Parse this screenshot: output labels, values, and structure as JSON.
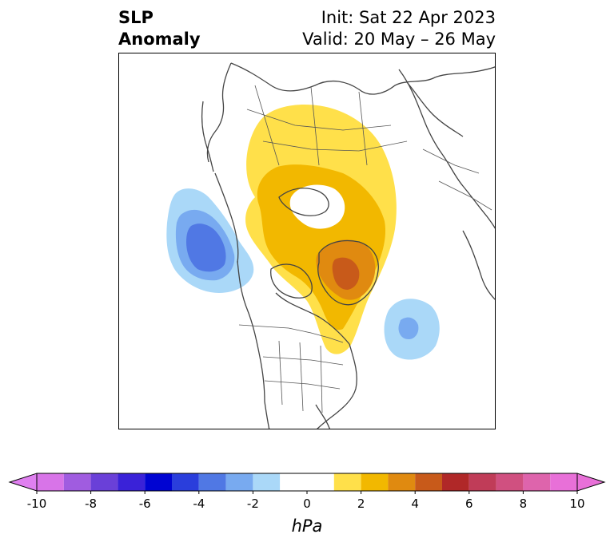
{
  "header": {
    "title_line1": "SLP",
    "title_line2": "Anomaly",
    "init_text": "Init: Sat 22 Apr 2023",
    "valid_text": "Valid: 20 May – 26 May"
  },
  "colorbar": {
    "unit": "hPa",
    "bounds": [
      -10,
      -9,
      -8,
      -7,
      -6,
      -5,
      -4,
      -3,
      -2,
      -1,
      1,
      2,
      3,
      4,
      5,
      6,
      7,
      8,
      9,
      10
    ],
    "colors": [
      "#d874e8",
      "#a05ce0",
      "#6a40d8",
      "#3a22d8",
      "#0004d2",
      "#2a3edc",
      "#5078e4",
      "#78aaf0",
      "#aad8f8",
      "#ffffff",
      "#ffe04a",
      "#f2b800",
      "#e08a10",
      "#c85a1a",
      "#b02828",
      "#c03c58",
      "#d05080",
      "#de64ac",
      "#e870d8"
    ],
    "under_color": "#e080f0",
    "over_color": "#e870d8",
    "tick_labels": [
      "-10",
      "-8",
      "-6",
      "-4",
      "-2",
      "0",
      "2",
      "4",
      "6",
      "8",
      "10"
    ],
    "tick_values": [
      -10,
      -8,
      -6,
      -4,
      -2,
      0,
      2,
      4,
      6,
      8,
      10
    ]
  },
  "map": {
    "projection": "north-polar",
    "anomaly_regions": [
      {
        "name": "positive-anomaly-canada-arctic",
        "sign": "positive",
        "max_value": 5
      },
      {
        "name": "negative-anomaly-north-pacific",
        "sign": "negative",
        "min_value": -4
      },
      {
        "name": "negative-anomaly-north-atlantic",
        "sign": "negative",
        "min_value": -3
      }
    ]
  }
}
